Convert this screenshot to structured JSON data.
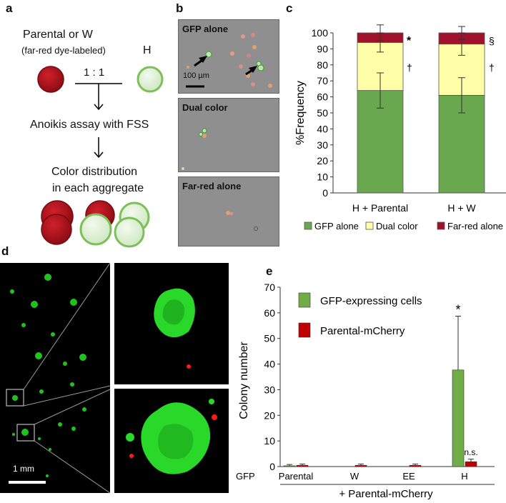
{
  "panel_a": {
    "label": "a",
    "line1": "Parental or W",
    "line2": "(far-red dye-labeled)",
    "h_label": "H",
    "ratio": "1 : 1",
    "step1": "Anoikis assay with FSS",
    "step2a": "Color distribution",
    "step2b": "in each aggregate",
    "colors": {
      "red": "#b5121b",
      "green_stroke": "#7fbf5a",
      "green_fill": "#dff0d6"
    }
  },
  "panel_b": {
    "label": "b",
    "images": [
      {
        "label": "GFP alone",
        "scale": "100 µm"
      },
      {
        "label": "Dual color"
      },
      {
        "label": "Far-red alone"
      }
    ]
  },
  "panel_c": {
    "label": "c",
    "ylabel": "%Frequency",
    "yticks": [
      "0",
      "10",
      "20",
      "30",
      "40",
      "50",
      "60",
      "70",
      "80",
      "90",
      "100"
    ],
    "legend": [
      "GFP alone",
      "Dual color",
      "Far-red alone"
    ],
    "marks": {
      "top_left": "*",
      "top_right": "§",
      "mid_left": "†",
      "mid_right": "†"
    }
  },
  "panel_d": {
    "label": "d",
    "scale": "1 mm"
  },
  "panel_e": {
    "label": "e",
    "ylabel": "Colony number",
    "yticks": [
      "0",
      "10",
      "20",
      "30",
      "40",
      "50",
      "60",
      "70"
    ],
    "xlabel_prefix": "GFP",
    "xlabel_bottom": "+ Parental-mCherry",
    "legend": [
      "GFP-expressing cells",
      "Parental-mCherry"
    ],
    "star": "*",
    "ns": "n.s."
  },
  "chart_data": [
    {
      "type": "bar",
      "stacked": true,
      "categories": [
        "H + Parental",
        "H + W"
      ],
      "series": [
        {
          "name": "GFP alone",
          "values": [
            64,
            61
          ],
          "errors": [
            11,
            11
          ],
          "color": "#6aa84f"
        },
        {
          "name": "Dual color",
          "values": [
            30,
            32
          ],
          "errors": [
            6,
            7
          ],
          "color": "#ffffa8"
        },
        {
          "name": "Far-red alone",
          "values": [
            6,
            7
          ],
          "errors": [
            5,
            4
          ],
          "color": "#a0112b"
        }
      ],
      "ylabel": "%Frequency",
      "ylim": [
        0,
        100
      ],
      "legend": "bottom"
    },
    {
      "type": "bar",
      "categories": [
        "Parental",
        "W",
        "EE",
        "H"
      ],
      "series": [
        {
          "name": "GFP-expressing cells",
          "values": [
            0.3,
            0,
            0,
            37.7
          ],
          "errors": [
            0.5,
            0,
            0,
            21
          ],
          "color": "#70ad47"
        },
        {
          "name": "Parental-mCherry",
          "values": [
            0.5,
            0.5,
            0.5,
            1.9
          ],
          "errors": [
            0.5,
            0.5,
            0.5,
            1.0
          ],
          "color": "#c00000"
        }
      ],
      "ylabel": "Colony number",
      "ylim": [
        0,
        70
      ],
      "legend": "top-left"
    }
  ]
}
